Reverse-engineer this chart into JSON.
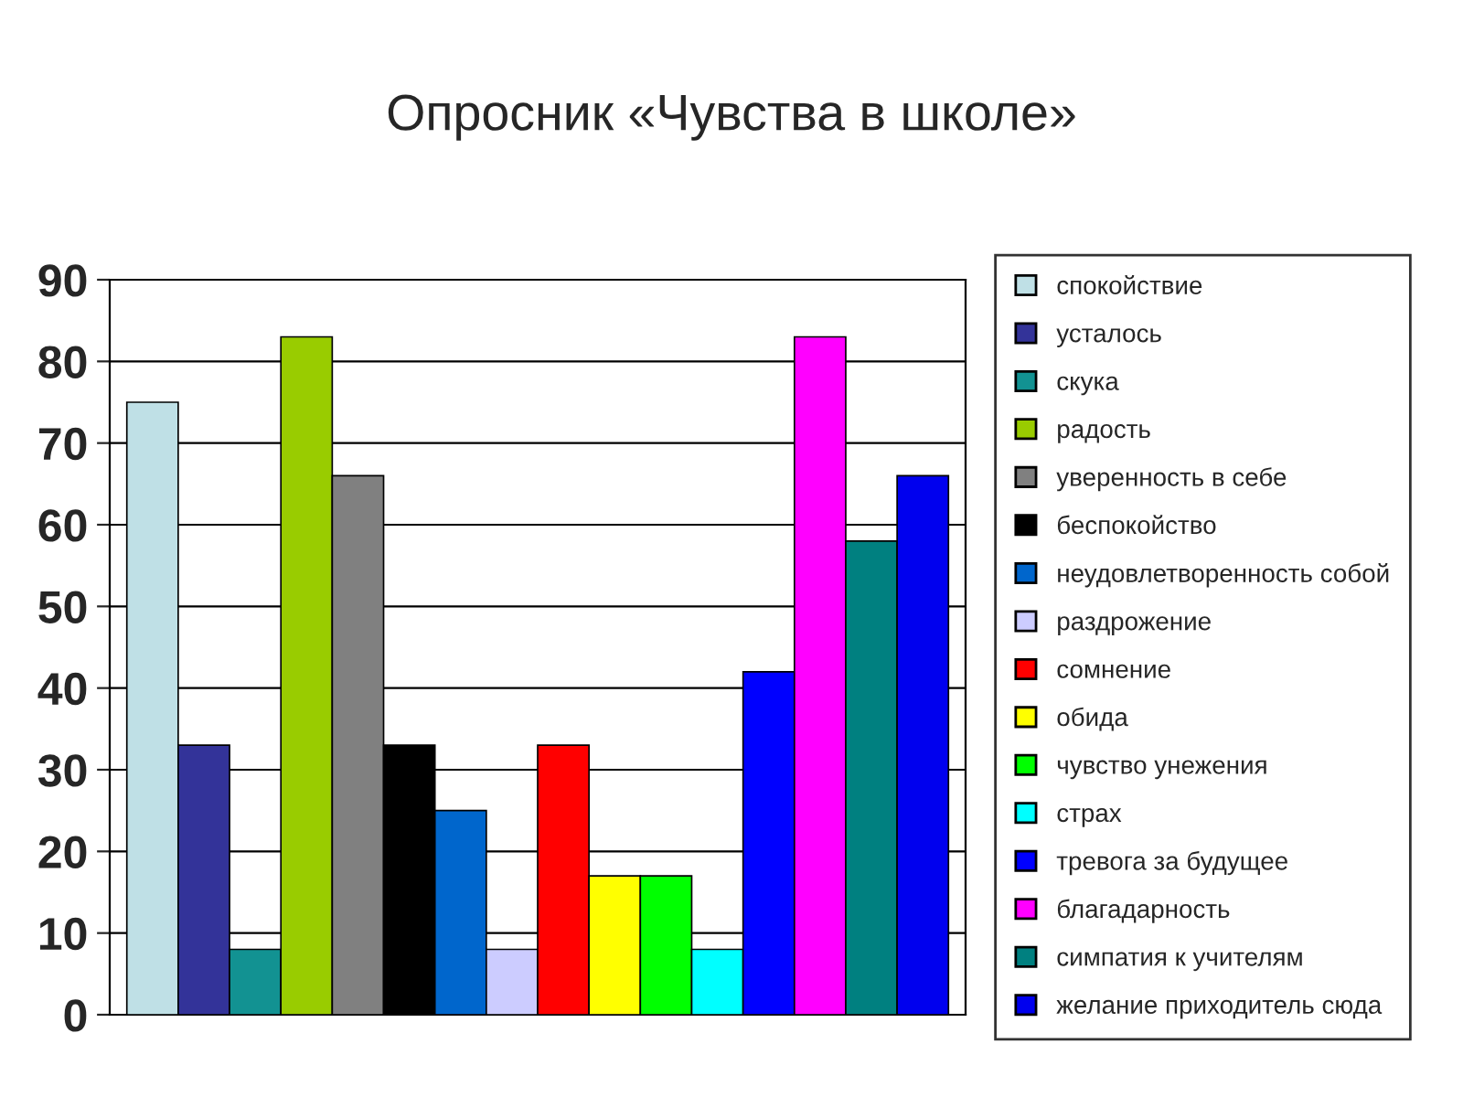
{
  "chart_data": {
    "type": "bar",
    "title": "Опросник «Чувства в школе»",
    "categories": [
      null
    ],
    "ylim": [
      0,
      90
    ],
    "yticks": [
      0,
      10,
      20,
      30,
      40,
      50,
      60,
      70,
      80,
      90
    ],
    "grid": "y",
    "legend": "right",
    "series": [
      {
        "name": "спокойствие",
        "color": "#bfe0e6",
        "values": [
          75
        ]
      },
      {
        "name": "усталось",
        "color": "#333399",
        "values": [
          33
        ]
      },
      {
        "name": "скука",
        "color": "#129292",
        "values": [
          8
        ]
      },
      {
        "name": "радость",
        "color": "#99cc00",
        "values": [
          83
        ]
      },
      {
        "name": "уверенность в себе",
        "color": "#808080",
        "values": [
          66
        ]
      },
      {
        "name": "беспокойство",
        "color": "#000000",
        "values": [
          33
        ]
      },
      {
        "name": "неудовлетворенность собой",
        "color": "#0066cc",
        "values": [
          25
        ]
      },
      {
        "name": "раздрожение",
        "color": "#ccccff",
        "values": [
          8
        ]
      },
      {
        "name": "сомнение",
        "color": "#ff0000",
        "values": [
          33
        ]
      },
      {
        "name": "обида",
        "color": "#ffff00",
        "values": [
          17
        ]
      },
      {
        "name": "чувство унежения",
        "color": "#00ff00",
        "values": [
          17
        ]
      },
      {
        "name": "страх",
        "color": "#00ffff",
        "values": [
          8
        ]
      },
      {
        "name": "тревога за будущее",
        "color": "#0000ff",
        "values": [
          42
        ]
      },
      {
        "name": "благадарность",
        "color": "#ff00ff",
        "values": [
          83
        ]
      },
      {
        "name": "симпатия к учителям",
        "color": "#008080",
        "values": [
          58
        ]
      },
      {
        "name": "желание приходитель сюда",
        "color": "#0000ee",
        "values": [
          66
        ]
      }
    ]
  }
}
